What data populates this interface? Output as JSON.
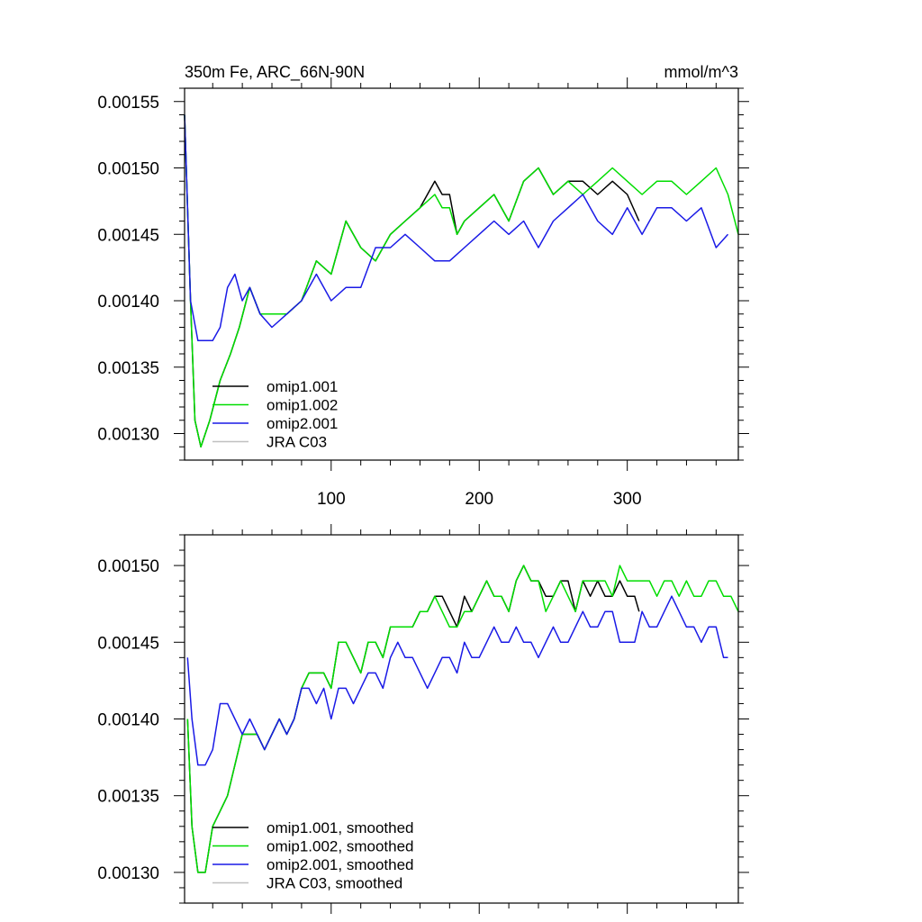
{
  "chart_data": [
    {
      "type": "line",
      "title": "350m Fe, ARC_66N-90N",
      "units": "mmol/m^3",
      "xlabel": "",
      "ylabel": "",
      "xlim": [
        1,
        375
      ],
      "ylim": [
        0.00128,
        0.00156
      ],
      "x_ticks": [
        100,
        200,
        300
      ],
      "x_tick_labels": [
        "100",
        "200",
        "300"
      ],
      "y_ticks": [
        0.0013,
        0.00135,
        0.0014,
        0.00145,
        0.0015,
        0.00155
      ],
      "y_tick_labels": [
        "0.00130",
        "0.00135",
        "0.00140",
        "0.00145",
        "0.00150",
        "0.00155"
      ],
      "legend_position": "lower-left",
      "series": [
        {
          "name": "omip1.001",
          "color": "#000000",
          "x": [
            1,
            5,
            8,
            12,
            18,
            25,
            32,
            38,
            45,
            52,
            60,
            70,
            80,
            90,
            100,
            110,
            120,
            130,
            140,
            150,
            160,
            170,
            175,
            180,
            185,
            190,
            200,
            210,
            220,
            230,
            240,
            250,
            260,
            270,
            280,
            290,
            300,
            308
          ],
          "values": [
            0.00154,
            0.0014,
            0.00131,
            0.00129,
            0.00131,
            0.00134,
            0.00136,
            0.00138,
            0.00141,
            0.00139,
            0.00139,
            0.00139,
            0.0014,
            0.00143,
            0.00142,
            0.00146,
            0.00144,
            0.00143,
            0.00145,
            0.00146,
            0.00147,
            0.00149,
            0.00148,
            0.00148,
            0.00145,
            0.00146,
            0.00147,
            0.00148,
            0.00146,
            0.00149,
            0.0015,
            0.00148,
            0.00149,
            0.00149,
            0.00148,
            0.00149,
            0.00148,
            0.00146
          ]
        },
        {
          "name": "omip1.002",
          "color": "#00dd00",
          "x": [
            1,
            5,
            8,
            12,
            18,
            25,
            32,
            38,
            45,
            52,
            60,
            70,
            80,
            90,
            100,
            110,
            120,
            130,
            140,
            150,
            160,
            170,
            175,
            180,
            185,
            190,
            200,
            210,
            220,
            230,
            240,
            250,
            260,
            270,
            280,
            290,
            300,
            310,
            320,
            330,
            340,
            350,
            360,
            368,
            375
          ],
          "values": [
            0.00154,
            0.0014,
            0.00131,
            0.00129,
            0.00131,
            0.00134,
            0.00136,
            0.00138,
            0.00141,
            0.00139,
            0.00139,
            0.00139,
            0.0014,
            0.00143,
            0.00142,
            0.00146,
            0.00144,
            0.00143,
            0.00145,
            0.00146,
            0.00147,
            0.00148,
            0.00147,
            0.00147,
            0.00145,
            0.00146,
            0.00147,
            0.00148,
            0.00146,
            0.00149,
            0.0015,
            0.00148,
            0.00149,
            0.00148,
            0.00149,
            0.0015,
            0.00149,
            0.00148,
            0.00149,
            0.00149,
            0.00148,
            0.00149,
            0.0015,
            0.00148,
            0.00145
          ]
        },
        {
          "name": "omip2.001",
          "color": "#1a1ae6",
          "x": [
            1,
            5,
            10,
            15,
            20,
            25,
            30,
            35,
            40,
            45,
            52,
            60,
            70,
            80,
            90,
            100,
            110,
            120,
            130,
            140,
            150,
            160,
            170,
            180,
            190,
            200,
            210,
            220,
            230,
            240,
            250,
            260,
            270,
            280,
            290,
            300,
            310,
            320,
            330,
            340,
            350,
            360,
            368
          ],
          "values": [
            0.00154,
            0.0014,
            0.00137,
            0.00137,
            0.00137,
            0.00138,
            0.00141,
            0.00142,
            0.0014,
            0.00141,
            0.00139,
            0.00138,
            0.00139,
            0.0014,
            0.00142,
            0.0014,
            0.00141,
            0.00141,
            0.00144,
            0.00144,
            0.00145,
            0.00144,
            0.00143,
            0.00143,
            0.00144,
            0.00145,
            0.00146,
            0.00145,
            0.00146,
            0.00144,
            0.00146,
            0.00147,
            0.00148,
            0.00146,
            0.00145,
            0.00147,
            0.00145,
            0.00147,
            0.00147,
            0.00146,
            0.00147,
            0.00144,
            0.00145
          ]
        },
        {
          "name": "JRA C03",
          "color": "#c0c0c0",
          "x": [],
          "values": []
        }
      ]
    },
    {
      "type": "line",
      "title": "",
      "xlabel": "",
      "ylabel": "",
      "xlim": [
        1,
        375
      ],
      "ylim": [
        0.00128,
        0.00152
      ],
      "x_ticks": [
        100,
        200,
        300
      ],
      "x_tick_labels": [],
      "y_ticks": [
        0.0013,
        0.00135,
        0.0014,
        0.00145,
        0.0015
      ],
      "y_tick_labels": [
        "0.00130",
        "0.00135",
        "0.00140",
        "0.00145",
        "0.00150"
      ],
      "legend_position": "lower-left",
      "series": [
        {
          "name": "omip1.001, smoothed",
          "color": "#000000",
          "x": [
            3,
            6,
            10,
            15,
            20,
            25,
            30,
            35,
            40,
            45,
            50,
            55,
            60,
            65,
            70,
            75,
            80,
            85,
            90,
            95,
            100,
            105,
            110,
            115,
            120,
            125,
            130,
            135,
            140,
            145,
            150,
            155,
            160,
            165,
            170,
            175,
            180,
            185,
            190,
            195,
            200,
            205,
            210,
            215,
            220,
            225,
            230,
            235,
            240,
            245,
            250,
            255,
            260,
            265,
            270,
            275,
            280,
            285,
            290,
            295,
            300,
            305,
            308
          ],
          "values": [
            0.0014,
            0.00133,
            0.0013,
            0.0013,
            0.00133,
            0.00134,
            0.00135,
            0.00137,
            0.00139,
            0.00139,
            0.00139,
            0.00138,
            0.00139,
            0.0014,
            0.00139,
            0.0014,
            0.00142,
            0.00143,
            0.00143,
            0.00143,
            0.00142,
            0.00145,
            0.00145,
            0.00144,
            0.00143,
            0.00145,
            0.00145,
            0.00144,
            0.00146,
            0.00146,
            0.00146,
            0.00146,
            0.00147,
            0.00147,
            0.00148,
            0.00148,
            0.00147,
            0.00146,
            0.00148,
            0.00147,
            0.00148,
            0.00149,
            0.00148,
            0.00148,
            0.00147,
            0.00149,
            0.0015,
            0.00149,
            0.00149,
            0.00148,
            0.00148,
            0.00149,
            0.00149,
            0.00147,
            0.00149,
            0.00148,
            0.00149,
            0.00148,
            0.00148,
            0.00149,
            0.00148,
            0.00148,
            0.00147
          ]
        },
        {
          "name": "omip1.002, smoothed",
          "color": "#00dd00",
          "x": [
            3,
            6,
            10,
            15,
            20,
            25,
            30,
            35,
            40,
            45,
            50,
            55,
            60,
            65,
            70,
            75,
            80,
            85,
            90,
            95,
            100,
            105,
            110,
            115,
            120,
            125,
            130,
            135,
            140,
            145,
            150,
            155,
            160,
            165,
            170,
            175,
            180,
            185,
            190,
            195,
            200,
            205,
            210,
            215,
            220,
            225,
            230,
            235,
            240,
            245,
            250,
            255,
            260,
            265,
            270,
            275,
            280,
            285,
            290,
            295,
            300,
            305,
            310,
            315,
            320,
            325,
            330,
            335,
            340,
            345,
            350,
            355,
            360,
            365,
            370,
            375
          ],
          "values": [
            0.0014,
            0.00133,
            0.0013,
            0.0013,
            0.00133,
            0.00134,
            0.00135,
            0.00137,
            0.00139,
            0.00139,
            0.00139,
            0.00138,
            0.00139,
            0.0014,
            0.00139,
            0.0014,
            0.00142,
            0.00143,
            0.00143,
            0.00143,
            0.00142,
            0.00145,
            0.00145,
            0.00144,
            0.00143,
            0.00145,
            0.00145,
            0.00144,
            0.00146,
            0.00146,
            0.00146,
            0.00146,
            0.00147,
            0.00147,
            0.00148,
            0.00147,
            0.00146,
            0.00146,
            0.00147,
            0.00147,
            0.00148,
            0.00149,
            0.00148,
            0.00148,
            0.00147,
            0.00149,
            0.0015,
            0.00149,
            0.00149,
            0.00147,
            0.00148,
            0.00149,
            0.00148,
            0.00147,
            0.00149,
            0.00149,
            0.00149,
            0.00149,
            0.00148,
            0.0015,
            0.00149,
            0.00149,
            0.00149,
            0.00149,
            0.00148,
            0.00149,
            0.00149,
            0.00148,
            0.00149,
            0.00148,
            0.00148,
            0.00149,
            0.00149,
            0.00148,
            0.00148,
            0.00147
          ]
        },
        {
          "name": "omip2.001, smoothed",
          "color": "#1a1ae6",
          "x": [
            3,
            6,
            10,
            15,
            20,
            25,
            30,
            35,
            40,
            45,
            50,
            55,
            60,
            65,
            70,
            75,
            80,
            85,
            90,
            95,
            100,
            105,
            110,
            115,
            120,
            125,
            130,
            135,
            140,
            145,
            150,
            155,
            160,
            165,
            170,
            175,
            180,
            185,
            190,
            195,
            200,
            205,
            210,
            215,
            220,
            225,
            230,
            235,
            240,
            245,
            250,
            255,
            260,
            265,
            270,
            275,
            280,
            285,
            290,
            295,
            300,
            305,
            310,
            315,
            320,
            325,
            330,
            335,
            340,
            345,
            350,
            355,
            360,
            365,
            368
          ],
          "values": [
            0.00144,
            0.0014,
            0.00137,
            0.00137,
            0.00138,
            0.00141,
            0.00141,
            0.0014,
            0.00139,
            0.0014,
            0.00139,
            0.00138,
            0.00139,
            0.0014,
            0.00139,
            0.0014,
            0.00142,
            0.00142,
            0.00141,
            0.00142,
            0.0014,
            0.00142,
            0.00142,
            0.00141,
            0.00142,
            0.00143,
            0.00143,
            0.00142,
            0.00144,
            0.00145,
            0.00144,
            0.00144,
            0.00143,
            0.00142,
            0.00143,
            0.00144,
            0.00144,
            0.00143,
            0.00145,
            0.00144,
            0.00144,
            0.00145,
            0.00146,
            0.00145,
            0.00145,
            0.00146,
            0.00145,
            0.00145,
            0.00144,
            0.00145,
            0.00146,
            0.00145,
            0.00145,
            0.00146,
            0.00147,
            0.00146,
            0.00146,
            0.00147,
            0.00147,
            0.00145,
            0.00145,
            0.00145,
            0.00147,
            0.00146,
            0.00146,
            0.00147,
            0.00148,
            0.00147,
            0.00146,
            0.00146,
            0.00145,
            0.00146,
            0.00146,
            0.00144,
            0.00144
          ]
        },
        {
          "name": "JRA C03, smoothed",
          "color": "#c0c0c0",
          "x": [],
          "values": []
        }
      ]
    }
  ]
}
